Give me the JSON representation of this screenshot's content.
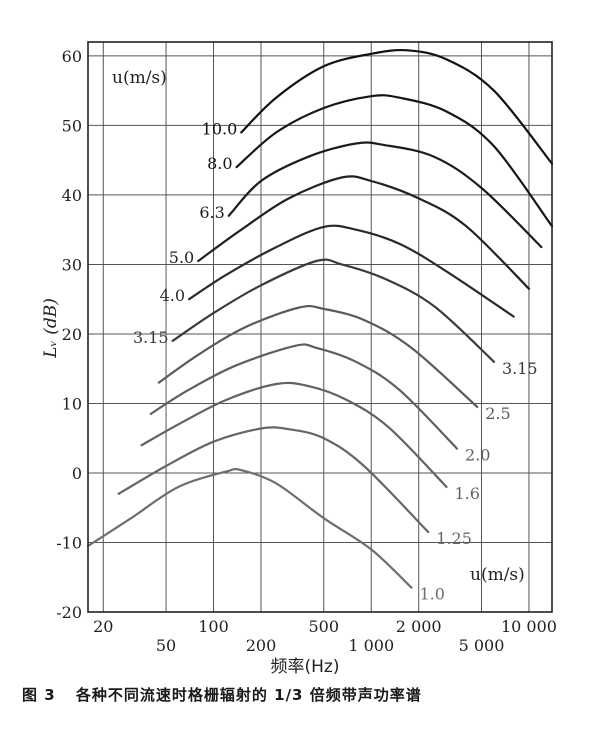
{
  "chart_data": {
    "type": "line",
    "title": "",
    "caption_label": "图 3",
    "caption_text": "各种不同流速时格栅辐射的 1/3 倍频带声功率谱",
    "ylabel": "Lᵥ (dB)",
    "xlabel": "频率(Hz)",
    "ylim": [
      -20,
      62
    ],
    "xlim_hz": [
      16,
      14000
    ],
    "x_scale": "log",
    "grid": true,
    "y_ticks": [
      60,
      50,
      40,
      30,
      20,
      10,
      0,
      -10,
      -20
    ],
    "y_tick_labels": [
      "60",
      "50",
      "40",
      "30",
      "20",
      "10",
      "0",
      "-10",
      "-20"
    ],
    "x_ticks_upper": [
      {
        "value": 20,
        "label": "20"
      },
      {
        "value": 100,
        "label": "100"
      },
      {
        "value": 500,
        "label": "500"
      },
      {
        "value": 2000,
        "label": "2 000"
      },
      {
        "value": 10000,
        "label": "10 000"
      }
    ],
    "x_ticks_lower": [
      {
        "value": 50,
        "label": "50"
      },
      {
        "value": 200,
        "label": "200"
      },
      {
        "value": 1000,
        "label": "1 000"
      },
      {
        "value": 5000,
        "label": "5 000"
      }
    ],
    "x_grid_hz": [
      20,
      50,
      100,
      200,
      500,
      1000,
      2000,
      5000,
      10000
    ],
    "legend_title_left": "u(m/s)",
    "legend_title_right": "u(m/s)",
    "series": [
      {
        "name": "10.0",
        "label_side": "left",
        "color": "#111111",
        "x": [
          150,
          250,
          500,
          1000,
          1700,
          3000,
          6000,
          14000
        ],
        "y": [
          49,
          54,
          58.5,
          60.3,
          60.8,
          59.5,
          55,
          44.5
        ]
      },
      {
        "name": "8.0",
        "label_side": "left",
        "color": "#161616",
        "x": [
          140,
          250,
          500,
          1000,
          1500,
          3000,
          6000,
          14000
        ],
        "y": [
          44,
          49,
          52.5,
          54.2,
          54,
          52,
          47,
          35.5
        ]
      },
      {
        "name": "6.3",
        "label_side": "left",
        "color": "#1c1c1c",
        "x": [
          125,
          200,
          400,
          800,
          1200,
          2500,
          5000,
          12000
        ],
        "y": [
          37,
          42,
          45.5,
          47.4,
          47.2,
          45.5,
          41,
          32.5
        ]
      },
      {
        "name": "5.0",
        "label_side": "left",
        "color": "#222222",
        "x": [
          80,
          150,
          300,
          650,
          1000,
          2000,
          4000,
          10000
        ],
        "y": [
          30.5,
          35,
          39.5,
          42.5,
          42,
          39.5,
          35.5,
          26.5
        ]
      },
      {
        "name": "4.0",
        "label_side": "left",
        "color": "#2a2a2a",
        "x": [
          70,
          120,
          250,
          500,
          800,
          1500,
          3000,
          8000
        ],
        "y": [
          25,
          28.5,
          32.5,
          35.4,
          35,
          33,
          29,
          22.5
        ]
      },
      {
        "name": "3.15",
        "label_side": "both",
        "color": "#3a3a3a",
        "x": [
          55,
          100,
          200,
          450,
          650,
          1200,
          2500,
          6000
        ],
        "y": [
          19,
          23,
          27,
          30.5,
          30,
          28,
          24,
          16
        ]
      },
      {
        "name": "2.5",
        "label_side": "right",
        "color": "#5a5a5a",
        "x": [
          45,
          80,
          160,
          350,
          500,
          900,
          1800,
          4700
        ],
        "y": [
          13,
          17,
          21,
          23.8,
          23.6,
          22,
          18,
          9.5
        ]
      },
      {
        "name": "2.0",
        "label_side": "right",
        "color": "#5e5e5e",
        "x": [
          40,
          70,
          140,
          330,
          450,
          800,
          1500,
          3500
        ],
        "y": [
          8.5,
          12,
          15.5,
          18.3,
          18,
          16,
          12,
          3.5
        ]
      },
      {
        "name": "1.6",
        "label_side": "right",
        "color": "#626262",
        "x": [
          35,
          60,
          120,
          250,
          400,
          700,
          1300,
          3000
        ],
        "y": [
          4,
          7,
          10.5,
          12.8,
          12.5,
          10.5,
          6.5,
          -2
        ]
      },
      {
        "name": "1.25",
        "label_side": "right",
        "color": "#666666",
        "x": [
          25,
          50,
          100,
          200,
          300,
          500,
          900,
          2300
        ],
        "y": [
          -3,
          1,
          4.5,
          6.4,
          6.3,
          5,
          1,
          -8.5
        ]
      },
      {
        "name": "1.0",
        "label_side": "right",
        "color": "#6e6e6e",
        "x": [
          16,
          30,
          60,
          120,
          150,
          250,
          500,
          1000,
          1800
        ],
        "y": [
          -10.5,
          -6.5,
          -2,
          0.2,
          0.4,
          -1.5,
          -6.5,
          -11,
          -16.5
        ]
      }
    ]
  }
}
